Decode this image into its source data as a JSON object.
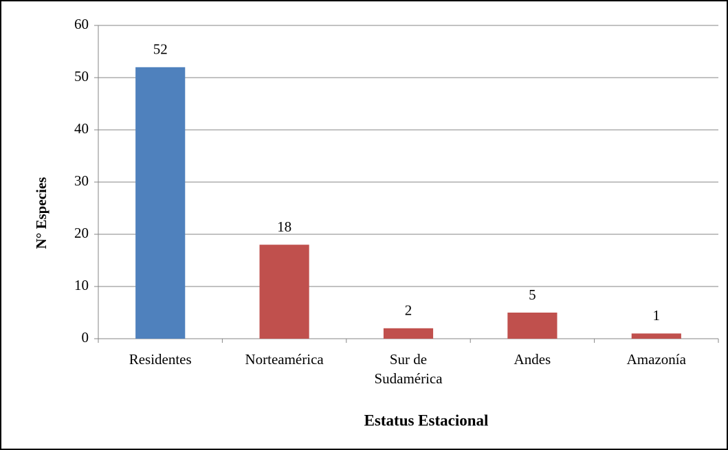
{
  "chart_data": {
    "type": "bar",
    "categories": [
      "Residentes",
      "Norteamérica",
      "Sur de Sudamérica",
      "Andes",
      "Amazonía"
    ],
    "values": [
      52,
      18,
      2,
      5,
      1
    ],
    "colors": [
      "#4f81bd",
      "#c0504d",
      "#c0504d",
      "#c0504d",
      "#c0504d"
    ],
    "ylim": [
      0,
      60
    ],
    "yticks": [
      0,
      10,
      20,
      30,
      40,
      50,
      60
    ],
    "grid": true,
    "y_label": "N° Especies",
    "x_label": "Estatus Estacional"
  }
}
